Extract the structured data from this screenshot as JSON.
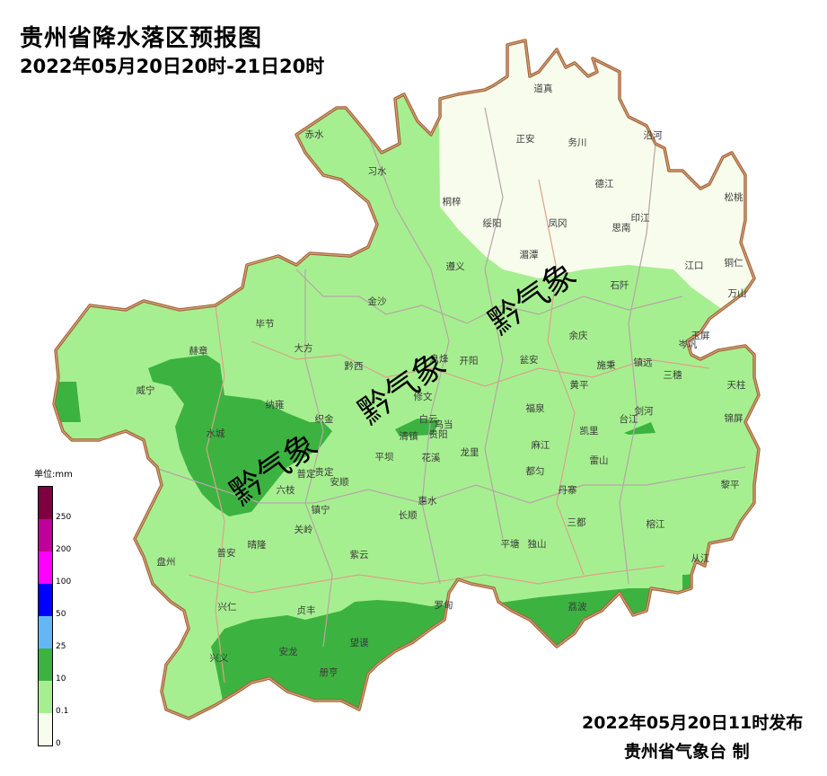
{
  "title": "贵州省降水落区预报图",
  "subtitle": "2022年05月20日20时-21日20时",
  "footer": {
    "issued": "2022年05月20日11时发布",
    "producer": "贵州省气象台 制"
  },
  "watermark": "黔气象",
  "legend": {
    "unit": "单位:mm",
    "classes": [
      {
        "label": "250",
        "color": "#7f0040"
      },
      {
        "label": "200",
        "color": "#c0009a"
      },
      {
        "label": "100",
        "color": "#ff00ff"
      },
      {
        "label": "50",
        "color": "#0000ff"
      },
      {
        "label": "25",
        "color": "#63b7f5"
      },
      {
        "label": "10",
        "color": "#3cb340"
      },
      {
        "label": "0.1",
        "color": "#a6ef90"
      },
      {
        "label": "0",
        "color": "#f8fcec"
      }
    ]
  },
  "counties": [
    "赤水",
    "习水",
    "道真",
    "正安",
    "务川",
    "沿河",
    "桐梓",
    "绥阳",
    "凤冈",
    "德江",
    "印江",
    "思南",
    "松桃",
    "湄潭",
    "江口",
    "铜仁",
    "遵义",
    "石阡",
    "万山",
    "金沙",
    "毕节",
    "大方",
    "赫章",
    "黔西",
    "息烽",
    "开阳",
    "瓮安",
    "余庆",
    "施秉",
    "镇远",
    "玉屏",
    "岑巩",
    "三穗",
    "天柱",
    "威宁",
    "纳雍",
    "织金",
    "修文",
    "白云",
    "乌当",
    "清镇",
    "贵阳",
    "黄平",
    "福泉",
    "剑河",
    "台江",
    "锦屏",
    "凯里",
    "水城",
    "贵定",
    "麻江",
    "雷山",
    "平坝",
    "花溪",
    "龙里",
    "普定",
    "安顺",
    "都匀",
    "丹寨",
    "黎平",
    "六枝",
    "惠水",
    "长顺",
    "镇宁",
    "关岭",
    "三都",
    "榕江",
    "盘州",
    "普安",
    "晴隆",
    "紫云",
    "平塘",
    "独山",
    "从江",
    "兴仁",
    "贞丰",
    "罗甸",
    "荔波",
    "兴义",
    "安龙",
    "望谟",
    "册亨"
  ]
}
